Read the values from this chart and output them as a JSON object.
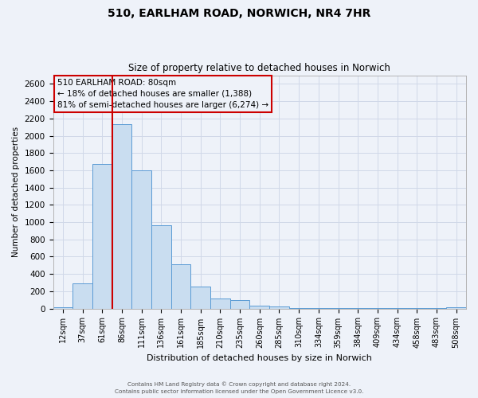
{
  "title": "510, EARLHAM ROAD, NORWICH, NR4 7HR",
  "subtitle": "Size of property relative to detached houses in Norwich",
  "xlabel": "Distribution of detached houses by size in Norwich",
  "ylabel": "Number of detached properties",
  "bar_labels": [
    "12sqm",
    "37sqm",
    "61sqm",
    "86sqm",
    "111sqm",
    "136sqm",
    "161sqm",
    "185sqm",
    "210sqm",
    "235sqm",
    "260sqm",
    "285sqm",
    "310sqm",
    "334sqm",
    "359sqm",
    "384sqm",
    "409sqm",
    "434sqm",
    "458sqm",
    "483sqm",
    "508sqm"
  ],
  "bar_values": [
    18,
    295,
    1670,
    2130,
    1600,
    960,
    510,
    255,
    120,
    100,
    30,
    20,
    8,
    8,
    8,
    8,
    8,
    8,
    8,
    8,
    18
  ],
  "bar_color": "#c9ddf0",
  "bar_edge_color": "#5b9bd5",
  "vline_x_index": 3,
  "vline_color": "#cc0000",
  "ylim": [
    0,
    2700
  ],
  "yticks": [
    0,
    200,
    400,
    600,
    800,
    1000,
    1200,
    1400,
    1600,
    1800,
    2000,
    2200,
    2400,
    2600
  ],
  "annotation_title": "510 EARLHAM ROAD: 80sqm",
  "annotation_line1": "← 18% of detached houses are smaller (1,388)",
  "annotation_line2": "81% of semi-detached houses are larger (6,274) →",
  "annotation_box_color": "#cc0000",
  "footer1": "Contains HM Land Registry data © Crown copyright and database right 2024.",
  "footer2": "Contains public sector information licensed under the Open Government Licence v3.0.",
  "grid_color": "#d0d8e8",
  "background_color": "#eef2f9"
}
